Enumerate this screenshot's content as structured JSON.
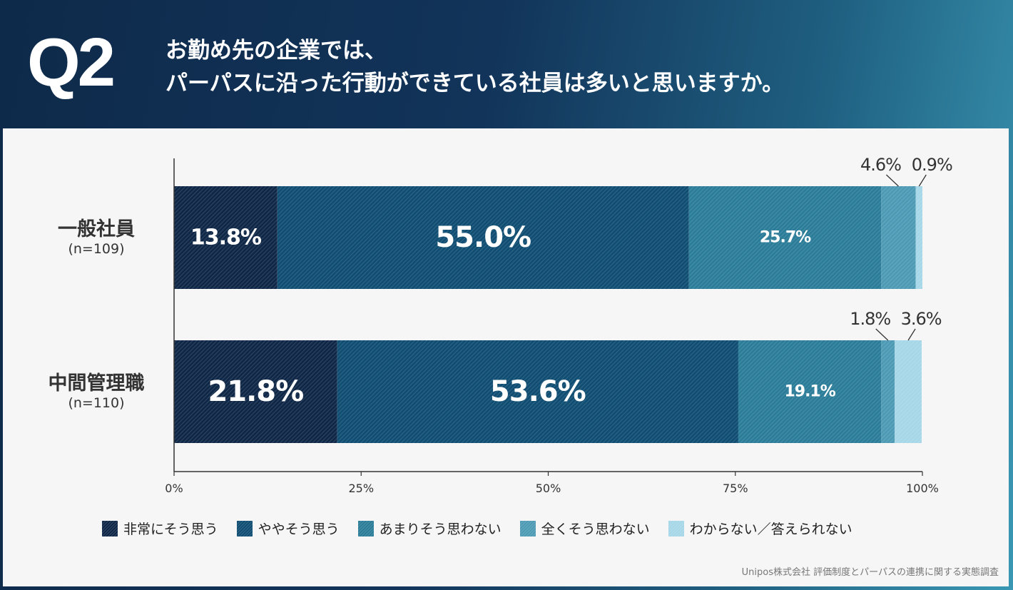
{
  "header": {
    "qnum": "Q2",
    "title_line1": "お勤め先の企業では、",
    "title_line2": "パーパスに沿った行動ができている社員は多いと思いますか。"
  },
  "source": "Unipos株式会社 評価制度とパーパスの連携に関する実態調査",
  "chart_data": {
    "type": "bar",
    "orientation": "horizontal",
    "stacked": true,
    "categories": [
      {
        "label": "一般社員",
        "n": "(n=109)"
      },
      {
        "label": "中間管理職",
        "n": "(n=110)"
      }
    ],
    "series": [
      {
        "name": "非常にそう思う",
        "color": "#0f2747",
        "values": [
          13.8,
          21.8
        ]
      },
      {
        "name": "ややそう思う",
        "color": "#0f4d72",
        "values": [
          55.0,
          53.6
        ]
      },
      {
        "name": "あまりそう思わない",
        "color": "#2a7c98",
        "values": [
          25.7,
          19.1
        ]
      },
      {
        "name": "全くそう思わない",
        "color": "#4d9ab5",
        "values": [
          4.6,
          1.8
        ]
      },
      {
        "name": "わからない／答えられない",
        "color": "#a6d7e8",
        "values": [
          0.9,
          3.6
        ]
      }
    ],
    "xlim": [
      0,
      100
    ],
    "xticks": [
      "0%",
      "25%",
      "50%",
      "75%",
      "100%"
    ],
    "legend": "bottom"
  }
}
